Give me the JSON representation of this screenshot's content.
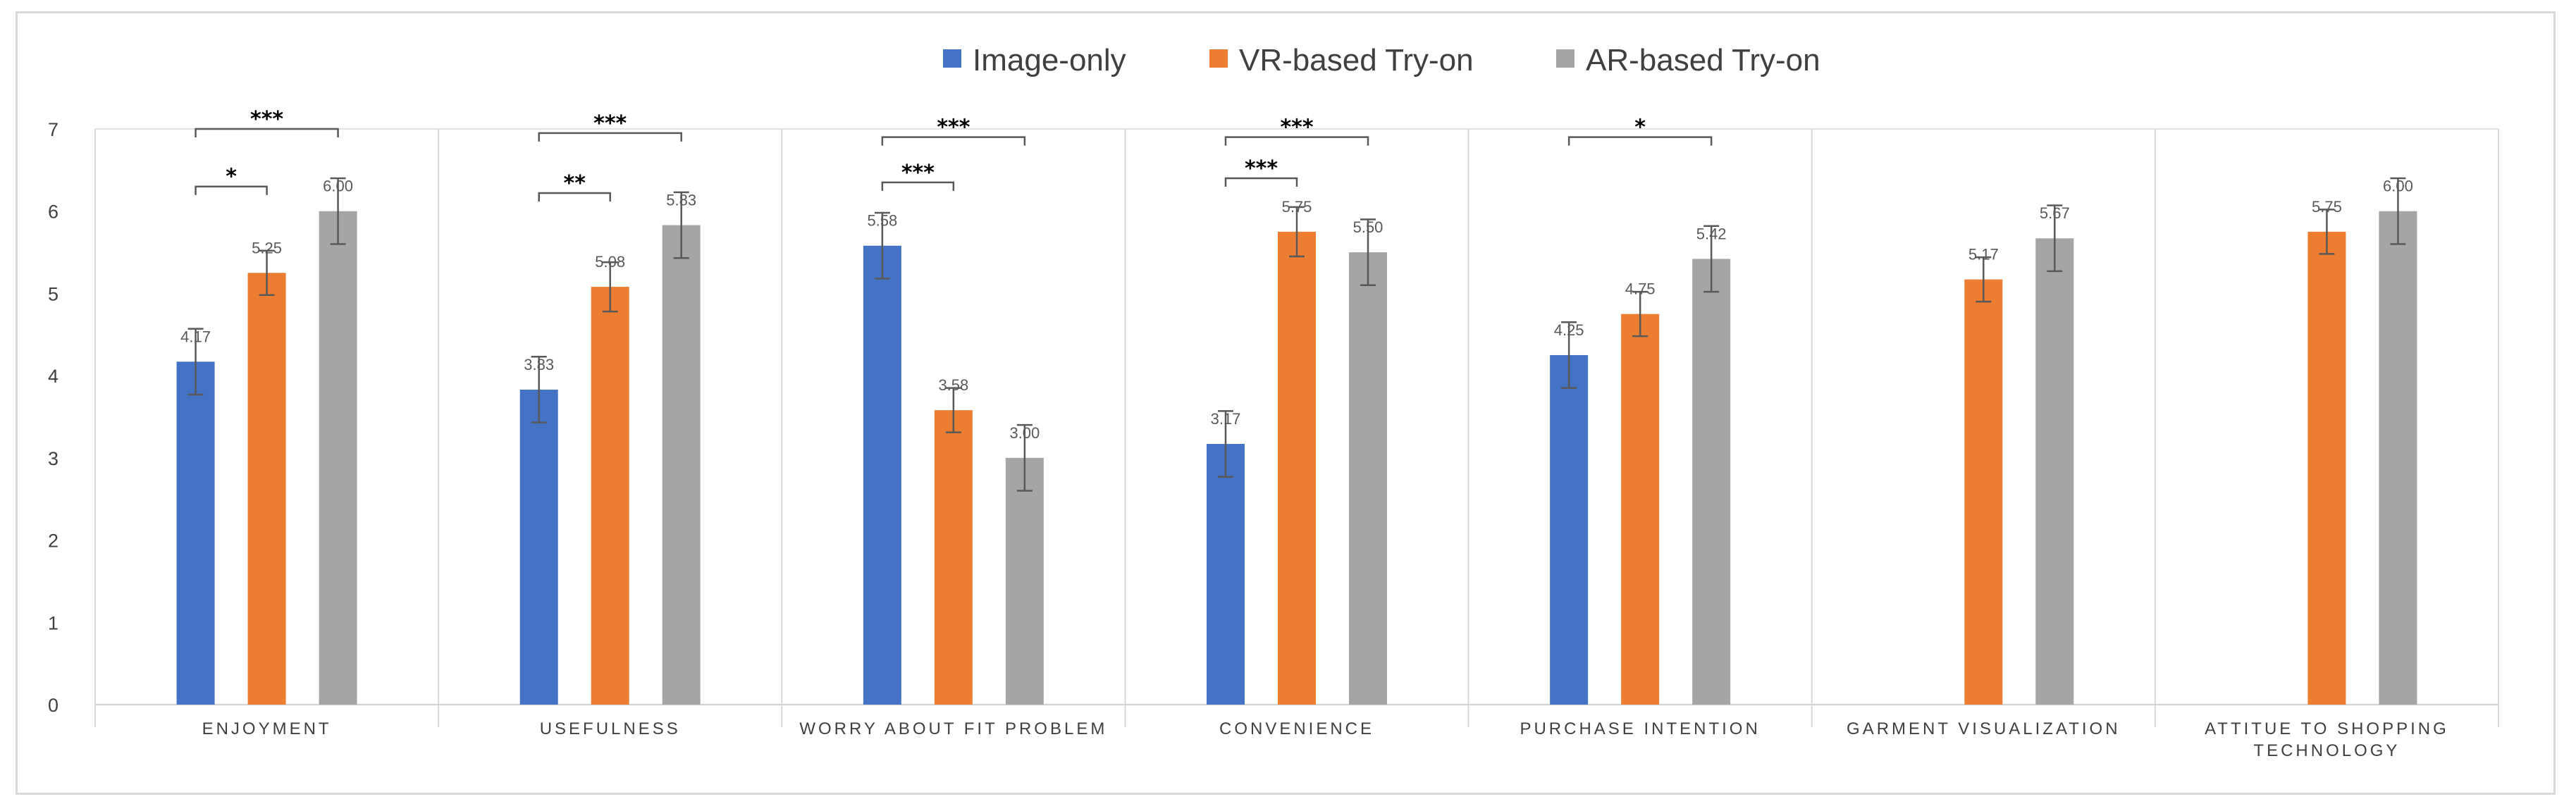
{
  "chart_data": {
    "type": "bar",
    "title": "",
    "xlabel": "",
    "ylabel": "",
    "ylim": [
      0,
      7
    ],
    "yticks": [
      "0",
      "1",
      "2",
      "3",
      "4",
      "5",
      "6",
      "7"
    ],
    "legend_position": "top",
    "categories": [
      [
        "ENJOYMENT"
      ],
      [
        "USEFULNESS"
      ],
      [
        "WORRY ABOUT FIT PROBLEM"
      ],
      [
        "CONVENIENCE"
      ],
      [
        "PURCHASE INTENTION"
      ],
      [
        "GARMENT VISUALIZATION"
      ],
      [
        "ATTITUE TO SHOPPING",
        "TECHNOLOGY"
      ]
    ],
    "series": [
      {
        "name": "Image-only",
        "color": "#4472c4",
        "values": [
          4.17,
          3.83,
          5.58,
          3.17,
          4.25,
          null,
          null
        ],
        "labels": [
          "4.17",
          "3.83",
          "5.58",
          "3.17",
          "4.25",
          null,
          null
        ],
        "errors": [
          0.4,
          0.4,
          0.4,
          0.4,
          0.4,
          null,
          null
        ]
      },
      {
        "name": "VR-based Try-on",
        "color": "#ed7d31",
        "values": [
          5.25,
          5.08,
          3.58,
          5.75,
          4.75,
          5.17,
          5.75
        ],
        "labels": [
          "5.25",
          "5.08",
          "3.58",
          "5.75",
          "4.75",
          "5.17",
          "5.75"
        ],
        "errors": [
          0.27,
          0.3,
          0.27,
          0.3,
          0.27,
          0.27,
          0.27
        ]
      },
      {
        "name": "AR-based Try-on",
        "color": "#a5a5a5",
        "values": [
          6.0,
          5.83,
          3.0,
          5.5,
          5.42,
          5.67,
          6.0
        ],
        "labels": [
          "6.00",
          "5.83",
          "3.00",
          "5.50",
          "5.42",
          "5.67",
          "6.00"
        ],
        "errors": [
          0.4,
          0.4,
          0.4,
          0.4,
          0.4,
          0.4,
          0.4
        ]
      }
    ],
    "annotations": [
      {
        "category": 0,
        "from": 0,
        "to": 2,
        "text": "***",
        "level": 7.0
      },
      {
        "category": 0,
        "from": 0,
        "to": 1,
        "text": "*",
        "level": 6.3
      },
      {
        "category": 1,
        "from": 0,
        "to": 2,
        "text": "***",
        "level": 6.95
      },
      {
        "category": 1,
        "from": 0,
        "to": 1,
        "text": "**",
        "level": 6.22
      },
      {
        "category": 2,
        "from": 0,
        "to": 2,
        "text": "***",
        "level": 6.9
      },
      {
        "category": 2,
        "from": 0,
        "to": 1,
        "text": "***",
        "level": 6.35
      },
      {
        "category": 3,
        "from": 0,
        "to": 2,
        "text": "***",
        "level": 6.9
      },
      {
        "category": 3,
        "from": 0,
        "to": 1,
        "text": "***",
        "level": 6.4
      },
      {
        "category": 4,
        "from": 0,
        "to": 2,
        "text": "*",
        "level": 6.9
      }
    ]
  }
}
